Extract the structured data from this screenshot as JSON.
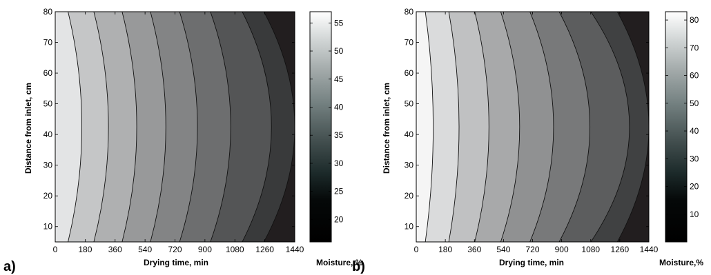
{
  "chart_data": [
    {
      "type": "contour",
      "panel_label": "a)",
      "xlabel": "Drying time, min",
      "ylabel": "Distance from inlet, cm",
      "colorbar_label": "Moisture, %",
      "xlim": [
        0,
        1440
      ],
      "ylim": [
        5,
        80
      ],
      "x_ticks": [
        0,
        180,
        360,
        540,
        720,
        900,
        1080,
        1260,
        1440
      ],
      "y_ticks": [
        10,
        20,
        30,
        40,
        50,
        60,
        70,
        80
      ],
      "colorbar_range": [
        16,
        57
      ],
      "colorbar_ticks": [
        20,
        25,
        30,
        35,
        40,
        45,
        50,
        55
      ],
      "grid": false,
      "levels": [
        {
          "fill": "#e3e4e5",
          "x_edge": 0,
          "x_mid": 0
        },
        {
          "fill": "#c5c6c7",
          "x_edge": 75,
          "x_mid": 160
        },
        {
          "fill": "#afb0b1",
          "x_edge": 230,
          "x_mid": 320
        },
        {
          "fill": "#98999a",
          "x_edge": 400,
          "x_mid": 490
        },
        {
          "fill": "#838485",
          "x_edge": 570,
          "x_mid": 665
        },
        {
          "fill": "#6d6e6f",
          "x_edge": 745,
          "x_mid": 855
        },
        {
          "fill": "#545556",
          "x_edge": 930,
          "x_mid": 1055
        },
        {
          "fill": "#393a3b",
          "x_edge": 1120,
          "x_mid": 1300
        },
        {
          "fill": "#221e1f",
          "x_edge": 1250,
          "x_mid": 1440
        }
      ]
    },
    {
      "type": "contour",
      "panel_label": "b)",
      "xlabel": "Drying time, min",
      "ylabel": "Distance from inlet, cm",
      "colorbar_label": "Moisture,%",
      "xlim": [
        0,
        1440
      ],
      "ylim": [
        5,
        80
      ],
      "x_ticks": [
        0,
        180,
        360,
        540,
        720,
        900,
        1080,
        1260,
        1440
      ],
      "y_ticks": [
        10,
        20,
        30,
        40,
        50,
        60,
        70,
        80
      ],
      "colorbar_range": [
        0,
        83
      ],
      "colorbar_ticks": [
        10,
        20,
        30,
        40,
        50,
        60,
        70,
        80
      ],
      "grid": false,
      "levels": [
        {
          "fill": "#f5f5f5",
          "x_edge": 0,
          "x_mid": 0
        },
        {
          "fill": "#dadbdc",
          "x_edge": 55,
          "x_mid": 105
        },
        {
          "fill": "#c0c1c2",
          "x_edge": 200,
          "x_mid": 265
        },
        {
          "fill": "#a8a9aa",
          "x_edge": 360,
          "x_mid": 450
        },
        {
          "fill": "#909192",
          "x_edge": 520,
          "x_mid": 640
        },
        {
          "fill": "#78797a",
          "x_edge": 700,
          "x_mid": 850
        },
        {
          "fill": "#5c5d5e",
          "x_edge": 880,
          "x_mid": 1075
        },
        {
          "fill": "#404142",
          "x_edge": 1075,
          "x_mid": 1320
        },
        {
          "fill": "#221e1f",
          "x_edge": 1240,
          "x_mid": 1440
        }
      ]
    }
  ]
}
